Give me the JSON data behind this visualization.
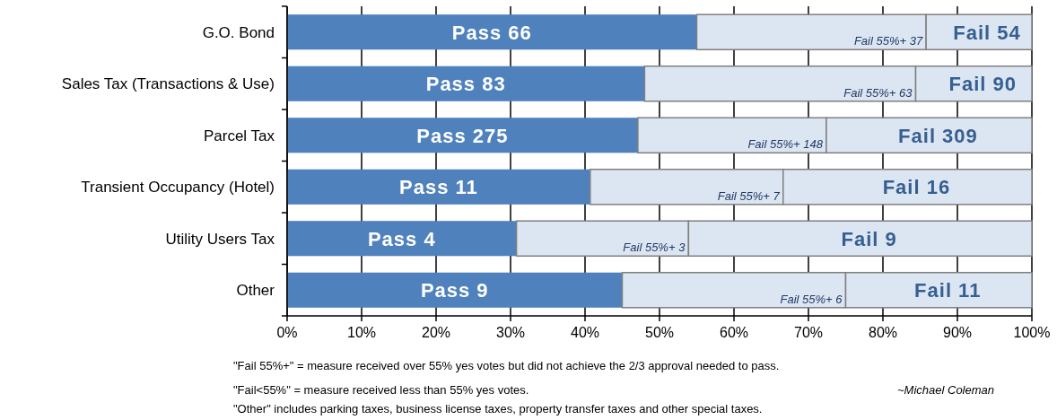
{
  "chart_data": {
    "type": "bar",
    "orientation": "horizontal",
    "stacked": true,
    "categories": [
      "G.O. Bond",
      "Sales Tax (Transactions & Use)",
      "Parcel Tax",
      "Transient Occupancy (Hotel)",
      "Utility Users Tax",
      "Other"
    ],
    "series": [
      {
        "color": "#4f81bd",
        "values": [
          55,
          48,
          47.1,
          40.7,
          30.8,
          45
        ],
        "value_labels": [
          "Pass 66",
          "Pass 83",
          "Pass 275",
          "Pass 11",
          "Pass 4",
          "Pass 9"
        ]
      },
      {
        "color": "#dce6f2",
        "values": [
          30.8,
          36.4,
          25.3,
          25.9,
          23.1,
          30
        ]
      },
      {
        "color": "#dce6f2",
        "values": [
          14.2,
          15.6,
          27.6,
          33.4,
          46.1,
          25
        ],
        "value_labels": [
          "Fail 54",
          "Fail 90",
          "Fail 309",
          "Fail 16",
          "Fail 9",
          "Fail 11"
        ]
      }
    ],
    "xlim": [
      0,
      100
    ],
    "xticks": [
      {
        "value": 0,
        "label": "0%"
      },
      {
        "value": 10,
        "label": "10%"
      },
      {
        "value": 20,
        "label": "20%"
      },
      {
        "value": 30,
        "label": "30%"
      },
      {
        "value": 40,
        "label": "40%"
      },
      {
        "value": 50,
        "label": "50%"
      },
      {
        "value": 60,
        "label": "60%"
      },
      {
        "value": 70,
        "label": "70%"
      },
      {
        "value": 80,
        "label": "80%"
      },
      {
        "value": 90,
        "label": "90%"
      },
      {
        "value": 100,
        "label": "100%"
      }
    ],
    "grid": "x",
    "annotations": [
      "\"Fail 55%+\" = measure received over 55% yes votes but did not achieve the 2/3 approval needed to pass.",
      "\"Fail<55%\" = measure received less than 55% yes votes.",
      "~Michael Coleman",
      "\"Other\" includes parking taxes, business license taxes, property transfer taxes and other special taxes.",
      {
        "text": "Fail 55%+ 37",
        "x": 85.8,
        "y": "G.O. Bond"
      },
      {
        "text": "Fail 55%+ 63",
        "x": 84.4,
        "y": "Sales Tax (Transactions & Use)"
      },
      {
        "text": "Fail 55%+ 148",
        "x": 72.4,
        "y": "Parcel Tax"
      },
      {
        "text": "Fail 55%+ 7",
        "x": 66.6,
        "y": "Transient Occupancy (Hotel)"
      },
      {
        "text": "Fail 55%+ 3",
        "x": 53.9,
        "y": "Utility Users Tax"
      },
      {
        "text": "Fail 55%+ 6",
        "x": 75,
        "y": "Other"
      }
    ]
  }
}
